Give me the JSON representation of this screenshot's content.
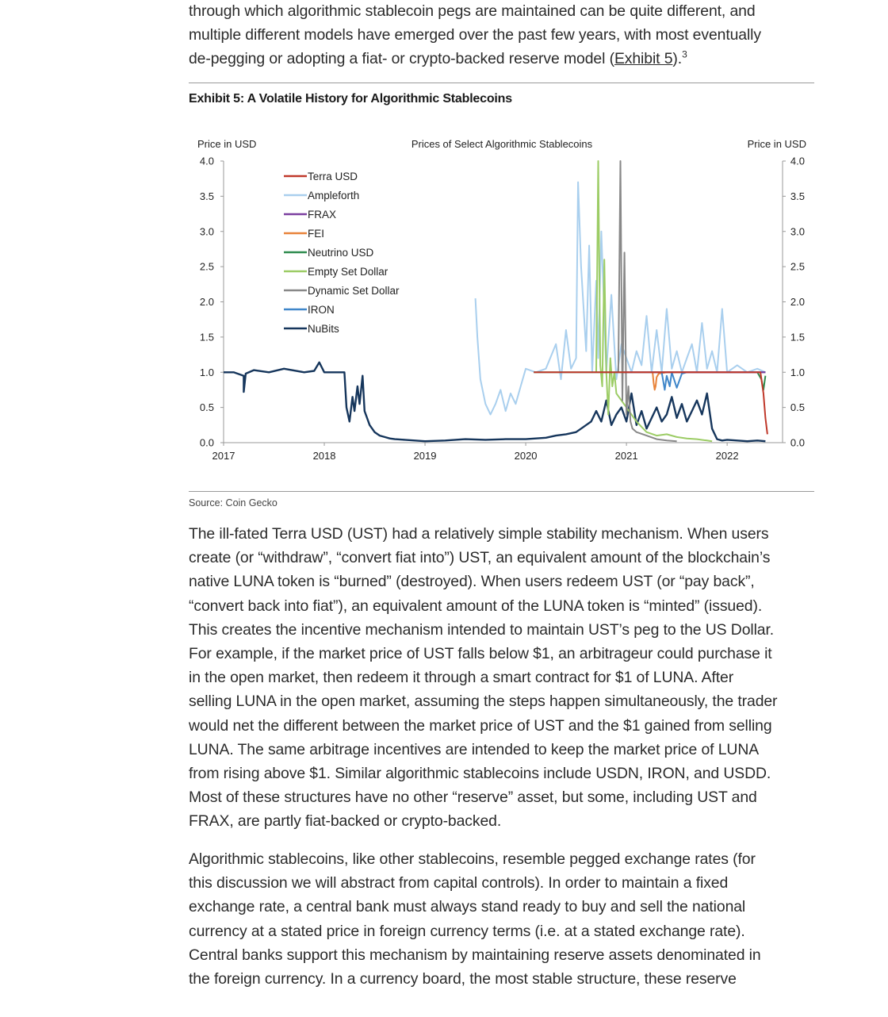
{
  "intro": {
    "line1": "through which algorithmic stablecoin pegs are maintained can be quite different, and",
    "line2": "multiple different models have emerged over the past few years, with most eventually",
    "line3_pre": "de-pegging or adopting a fiat- or crypto-backed reserve model (",
    "line3_link": "Exhibit 5",
    "line3_post": ").",
    "footnote": "3"
  },
  "exhibit": {
    "title": "Exhibit 5: A Volatile History for Algorithmic Stablecoins",
    "source": "Source: Coin Gecko"
  },
  "chart_data": {
    "type": "line",
    "title": "Prices of Select Algorithmic Stablecoins",
    "ylabel_left": "Price in USD",
    "ylabel_right": "Price in USD",
    "ylim": [
      0,
      4
    ],
    "y_ticks": [
      "0.0",
      "0.5",
      "1.0",
      "1.5",
      "2.0",
      "2.5",
      "3.0",
      "3.5",
      "4.0"
    ],
    "x_ticks": [
      "2017",
      "2018",
      "2019",
      "2020",
      "2021",
      "2022"
    ],
    "xlim": [
      2017.0,
      2022.55
    ],
    "legend_placement": "top-left",
    "grid": false,
    "series": [
      {
        "name": "Terra USD",
        "color": "#c0392b",
        "x": [
          2020.08,
          2020.5,
          2021.0,
          2021.5,
          2022.0,
          2022.33,
          2022.36,
          2022.38,
          2022.4
        ],
        "y": [
          1.0,
          1.0,
          1.0,
          1.0,
          1.0,
          1.0,
          0.7,
          0.35,
          0.12
        ]
      },
      {
        "name": "Ampleforth",
        "color": "#a9cfee",
        "x": [
          2019.5,
          2019.52,
          2019.55,
          2019.6,
          2019.65,
          2019.7,
          2019.75,
          2019.8,
          2019.85,
          2019.9,
          2019.95,
          2020.0,
          2020.1,
          2020.2,
          2020.3,
          2020.35,
          2020.4,
          2020.45,
          2020.5,
          2020.52,
          2020.55,
          2020.6,
          2020.63,
          2020.66,
          2020.7,
          2020.72,
          2020.75,
          2020.8,
          2020.85,
          2020.9,
          2020.95,
          2021.0,
          2021.05,
          2021.1,
          2021.15,
          2021.2,
          2021.25,
          2021.3,
          2021.35,
          2021.4,
          2021.45,
          2021.5,
          2021.55,
          2021.6,
          2021.65,
          2021.7,
          2021.75,
          2021.8,
          2021.85,
          2021.9,
          2021.95,
          2022.0,
          2022.1,
          2022.2,
          2022.3,
          2022.38
        ],
        "y": [
          2.05,
          1.5,
          0.9,
          0.55,
          0.4,
          0.55,
          0.75,
          0.45,
          0.7,
          0.55,
          0.8,
          1.05,
          1.0,
          1.05,
          1.4,
          0.9,
          1.6,
          1.05,
          1.2,
          3.7,
          2.5,
          1.3,
          2.8,
          1.0,
          2.3,
          1.2,
          3.0,
          1.0,
          2.1,
          0.9,
          1.4,
          1.2,
          1.0,
          1.3,
          1.1,
          1.8,
          1.0,
          1.6,
          1.0,
          1.9,
          1.05,
          1.3,
          1.0,
          1.2,
          1.4,
          1.0,
          1.7,
          1.05,
          1.3,
          1.0,
          1.9,
          1.0,
          1.1,
          1.0,
          1.05,
          1.0
        ]
      },
      {
        "name": "FRAX",
        "color": "#7b3fa0",
        "x": [
          2020.97,
          2021.2,
          2021.5,
          2021.8,
          2022.1,
          2022.38
        ],
        "y": [
          1.0,
          1.0,
          1.0,
          1.0,
          1.0,
          1.0
        ]
      },
      {
        "name": "FEI",
        "color": "#e8833a",
        "x": [
          2021.26,
          2021.27,
          2021.28,
          2021.29,
          2021.3,
          2021.32,
          2021.4,
          2021.6,
          2021.8,
          2022.0,
          2022.2,
          2022.38
        ],
        "y": [
          1.0,
          0.85,
          0.75,
          0.8,
          0.93,
          0.98,
          1.0,
          1.0,
          1.0,
          1.0,
          1.0,
          1.0
        ]
      },
      {
        "name": "Neutrino USD",
        "color": "#2e8b4e",
        "x": [
          2020.08,
          2020.3,
          2020.6,
          2020.9,
          2021.2,
          2021.5,
          2021.8,
          2022.1,
          2022.3,
          2022.34,
          2022.36,
          2022.38
        ],
        "y": [
          1.0,
          1.0,
          1.0,
          1.0,
          1.0,
          1.0,
          1.0,
          1.0,
          1.0,
          0.9,
          0.75,
          0.95
        ]
      },
      {
        "name": "Empty Set Dollar",
        "color": "#9ccc65",
        "x": [
          2020.7,
          2020.72,
          2020.74,
          2020.76,
          2020.78,
          2020.8,
          2020.82,
          2020.84,
          2020.86,
          2020.88,
          2020.9,
          2020.95,
          2021.0,
          2021.1,
          2021.2,
          2021.3,
          2021.4,
          2021.5,
          2021.6,
          2021.7,
          2021.8,
          2021.85
        ],
        "y": [
          1.0,
          4.0,
          1.1,
          0.8,
          2.6,
          1.0,
          0.4,
          1.2,
          0.8,
          1.0,
          0.7,
          0.6,
          0.5,
          0.3,
          0.15,
          0.1,
          0.12,
          0.08,
          0.06,
          0.05,
          0.03,
          0.02
        ]
      },
      {
        "name": "Dynamic Set Dollar",
        "color": "#888888",
        "x": [
          2020.92,
          2020.94,
          2020.96,
          2020.98,
          2021.0,
          2021.02,
          2021.04,
          2021.06,
          2021.1,
          2021.2,
          2021.3,
          2021.4,
          2021.5
        ],
        "y": [
          1.0,
          4.0,
          0.6,
          2.7,
          0.4,
          0.8,
          0.3,
          0.2,
          0.15,
          0.1,
          0.05,
          0.03,
          0.02
        ]
      },
      {
        "name": "IRON",
        "color": "#3f86c9",
        "x": [
          2021.35,
          2021.38,
          2021.4,
          2021.43,
          2021.45,
          2021.5,
          2021.55,
          2021.6,
          2021.7,
          2021.8,
          2021.9,
          2022.0,
          2022.2,
          2022.38
        ],
        "y": [
          1.0,
          0.75,
          0.95,
          0.8,
          1.0,
          0.78,
          0.98,
          1.0,
          1.0,
          1.0,
          1.0,
          1.0,
          1.0,
          1.0
        ]
      },
      {
        "name": "NuBits",
        "color": "#16365c",
        "x": [
          2017.0,
          2017.1,
          2017.2,
          2017.2,
          2017.22,
          2017.3,
          2017.45,
          2017.6,
          2017.8,
          2017.9,
          2017.95,
          2018.0,
          2018.1,
          2018.2,
          2018.22,
          2018.25,
          2018.28,
          2018.3,
          2018.33,
          2018.35,
          2018.38,
          2018.4,
          2018.45,
          2018.5,
          2018.55,
          2018.6,
          2018.65,
          2018.7,
          2018.8,
          2018.9,
          2019.0,
          2019.2,
          2019.4,
          2019.6,
          2019.8,
          2020.0,
          2020.2,
          2020.3,
          2020.4,
          2020.5,
          2020.55,
          2020.6,
          2020.65,
          2020.7,
          2020.75,
          2020.8,
          2020.85,
          2020.9,
          2020.95,
          2021.0,
          2021.05,
          2021.1,
          2021.15,
          2021.2,
          2021.25,
          2021.3,
          2021.35,
          2021.4,
          2021.45,
          2021.5,
          2021.55,
          2021.6,
          2021.65,
          2021.7,
          2021.75,
          2021.8,
          2021.85,
          2021.9,
          2021.95,
          2022.0,
          2022.1,
          2022.2,
          2022.3,
          2022.38
        ],
        "y": [
          1.0,
          1.0,
          0.95,
          0.72,
          0.98,
          1.03,
          1.0,
          1.05,
          1.0,
          1.02,
          1.14,
          1.0,
          1.0,
          1.0,
          0.5,
          0.3,
          0.65,
          0.45,
          0.8,
          0.55,
          0.95,
          0.45,
          0.25,
          0.15,
          0.1,
          0.08,
          0.06,
          0.05,
          0.04,
          0.03,
          0.02,
          0.03,
          0.05,
          0.04,
          0.05,
          0.05,
          0.07,
          0.1,
          0.12,
          0.15,
          0.2,
          0.25,
          0.3,
          0.45,
          0.3,
          0.6,
          0.25,
          0.4,
          0.5,
          0.3,
          0.7,
          0.25,
          0.45,
          0.2,
          0.35,
          0.5,
          0.3,
          0.4,
          0.65,
          0.35,
          0.55,
          0.3,
          0.45,
          0.6,
          0.4,
          0.7,
          0.2,
          0.05,
          0.03,
          0.04,
          0.03,
          0.02,
          0.03,
          0.02
        ]
      }
    ]
  },
  "body1": [
    "The ill-fated Terra USD (UST) had a relatively simple stability mechanism. When users",
    "create (or “withdraw”, “convert fiat into”) UST, an equivalent amount of the blockchain’s",
    "native LUNA token is “burned” (destroyed). When users redeem UST (or “pay back”,",
    "“convert back into fiat”), an equivalent amount of the LUNA token is “minted” (issued).",
    "This creates the incentive mechanism intended to maintain UST’s peg to the US Dollar.",
    "For example, if the market price of UST falls below $1, an arbitrageur could purchase it",
    "in the open market, then redeem it through a smart contract for $1 of LUNA. After",
    "selling LUNA in the open market, assuming the steps happen simultaneously, the trader",
    "would net the different between the market price of UST and the $1 gained from selling",
    "LUNA. The same arbitrage incentives are intended to keep the market price of LUNA",
    "from rising above $1. Similar algorithmic stablecoins include USDN, IRON, and USDD.",
    "Most of these structures have no other “reserve” asset, but some, including UST and",
    "FRAX, are partly fiat-backed or crypto-backed."
  ],
  "body2": [
    "Algorithmic stablecoins, like other stablecoins, resemble pegged exchange rates (for",
    "this discussion we will abstract from capital controls). In order to maintain a fixed",
    "exchange rate, a central bank must always stand ready to buy and sell the national",
    "currency at a stated price in foreign currency terms (i.e. at a stated exchange rate).",
    "Central banks support this mechanism by maintaining reserve assets denominated in",
    "the foreign currency. In a currency board, the most stable structure, these reserve"
  ]
}
